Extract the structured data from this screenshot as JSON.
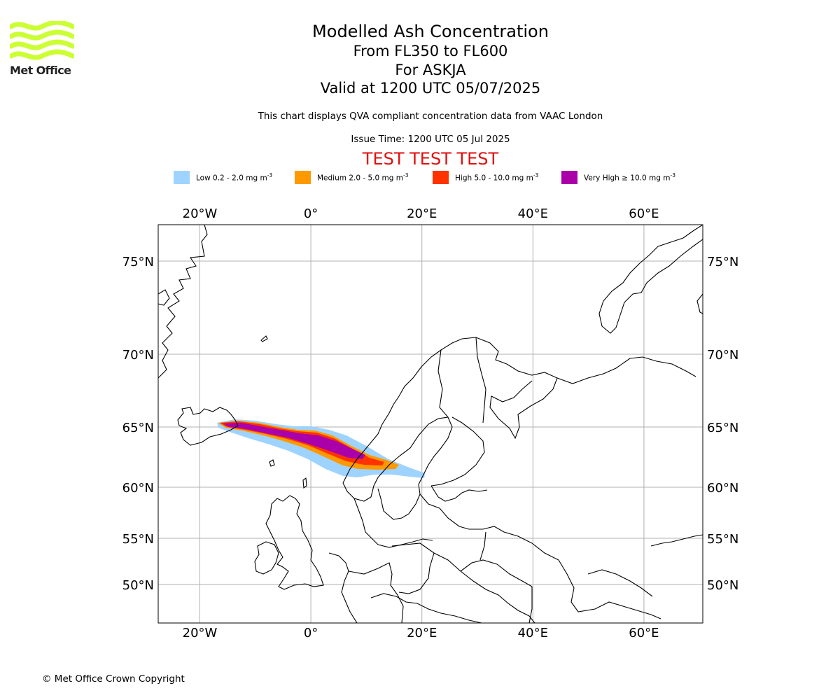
{
  "logo": {
    "text": "Met Office",
    "wave_color": "#ccff33"
  },
  "title": {
    "main": "Modelled Ash Concentration",
    "level_range": "From FL350 to FL600",
    "volcano": "For ASKJA",
    "valid_time": "Valid at 1200 UTC 05/07/2025"
  },
  "description": "This chart displays QVA compliant concentration data from VAAC London",
  "issue_time": "Issue Time: 1200 UTC 05 Jul 2025",
  "test_banner": "TEST TEST TEST",
  "legend": [
    {
      "label": "Low 0.2 - 2.0 mg m",
      "unit_exp": "-3",
      "color": "#9fd3ff"
    },
    {
      "label": "Medium 2.0 - 5.0 mg m",
      "unit_exp": "-3",
      "color": "#ff9900"
    },
    {
      "label": "High 5.0 - 10.0 mg m",
      "unit_exp": "-3",
      "color": "#ff3300"
    },
    {
      "label": "Very High ≥ 10.0 mg m",
      "unit_exp": "-3",
      "color": "#aa00aa"
    }
  ],
  "map": {
    "longitude_ticks": [
      "20°W",
      "0°",
      "20°E",
      "40°E",
      "60°E"
    ],
    "latitude_ticks": [
      "75°N",
      "70°N",
      "65°N",
      "60°N",
      "55°N",
      "50°N"
    ],
    "longitude_values": [
      -20,
      0,
      20,
      40,
      60
    ],
    "latitude_values": [
      75,
      70,
      65,
      60,
      55,
      50
    ],
    "extent": {
      "lon_min": -27.5,
      "lon_max": 70.6,
      "lat_min": 47.1,
      "lat_max": 76.4
    },
    "grid": true,
    "coastline_color": "#000000"
  },
  "copyright": "© Met Office Crown Copyright"
}
